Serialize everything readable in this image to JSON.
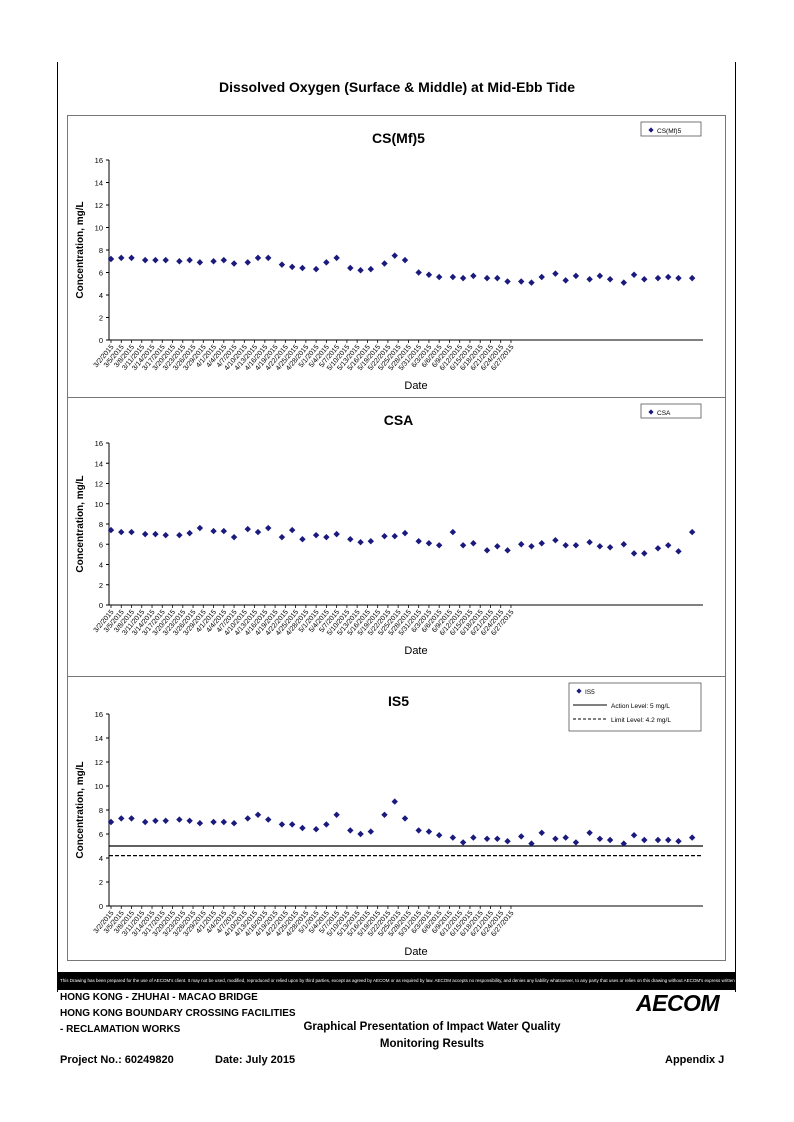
{
  "page_title": "Dissolved Oxygen (Surface & Middle) at Mid-Ebb Tide",
  "dates": [
    "3/2/2015",
    "3/5/2015",
    "3/8/2015",
    "3/11/2015",
    "3/14/2015",
    "3/17/2015",
    "3/20/2015",
    "3/23/2015",
    "3/26/2015",
    "3/29/2015",
    "4/1/2015",
    "4/4/2015",
    "4/7/2015",
    "4/10/2015",
    "4/13/2015",
    "4/16/2015",
    "4/19/2015",
    "4/22/2015",
    "4/25/2015",
    "4/28/2015",
    "5/1/2015",
    "5/4/2015",
    "5/7/2015",
    "5/10/2015",
    "5/13/2015",
    "5/16/2015",
    "5/19/2015",
    "5/22/2015",
    "5/25/2015",
    "5/28/2015",
    "5/31/2015",
    "6/3/2015",
    "6/6/2015",
    "6/9/2015",
    "6/12/2015",
    "6/15/2015",
    "6/18/2015",
    "6/21/2015",
    "6/24/2015",
    "6/27/2015"
  ],
  "chart_data": [
    {
      "type": "scatter",
      "title": "CS(Mf)5",
      "xlabel": "Date",
      "ylabel": "Concentration, mg/L",
      "ylim": [
        0,
        16
      ],
      "yticks": [
        "0",
        "2",
        "4",
        "6",
        "8",
        "10",
        "12",
        "14",
        "16"
      ],
      "x_days": [
        0,
        1,
        2,
        4,
        5,
        6,
        8,
        9,
        10,
        11,
        12,
        13,
        14,
        15,
        16,
        17,
        18,
        20,
        21,
        22,
        23,
        24,
        26,
        27,
        28,
        29,
        30,
        32,
        33,
        34,
        35,
        36,
        37,
        38,
        39,
        40,
        41,
        43,
        44,
        45,
        46,
        47,
        48,
        50,
        51,
        52,
        53,
        54,
        55,
        57,
        58,
        59,
        60,
        61,
        62,
        64,
        65,
        66,
        67,
        68,
        69,
        71,
        72,
        73,
        74,
        75,
        76,
        78,
        79,
        80,
        81,
        82,
        83,
        85,
        86,
        87,
        88,
        89,
        90,
        92,
        93,
        94,
        95,
        96,
        97,
        99,
        100,
        101,
        102,
        103,
        104,
        106,
        107,
        108,
        109,
        110,
        111,
        113,
        114,
        115,
        116,
        117,
        118
      ],
      "series": [
        {
          "name": "CS(Mf)5",
          "color": "#1a1a7e",
          "points": [
            [
              0,
              7.2
            ],
            [
              3,
              7.3
            ],
            [
              6,
              7.3
            ],
            [
              10,
              7.1
            ],
            [
              13,
              7.1
            ],
            [
              16,
              7.1
            ],
            [
              20,
              7.0
            ],
            [
              23,
              7.1
            ],
            [
              26,
              6.9
            ],
            [
              30,
              7.0
            ],
            [
              33,
              7.1
            ],
            [
              36,
              6.8
            ],
            [
              40,
              6.9
            ],
            [
              43,
              7.3
            ],
            [
              46,
              7.3
            ],
            [
              50,
              6.7
            ],
            [
              53,
              6.5
            ],
            [
              56,
              6.4
            ],
            [
              60,
              6.3
            ],
            [
              63,
              6.9
            ],
            [
              66,
              7.3
            ],
            [
              70,
              6.4
            ],
            [
              73,
              6.2
            ],
            [
              76,
              6.3
            ],
            [
              80,
              6.8
            ],
            [
              83,
              7.5
            ],
            [
              86,
              7.1
            ],
            [
              90,
              6.0
            ],
            [
              93,
              5.8
            ],
            [
              96,
              5.6
            ],
            [
              100,
              5.6
            ],
            [
              103,
              5.5
            ],
            [
              106,
              5.7
            ],
            [
              110,
              5.5
            ],
            [
              113,
              5.5
            ],
            [
              116,
              5.2
            ],
            [
              120,
              5.2
            ],
            [
              123,
              5.1
            ],
            [
              126,
              5.6
            ],
            [
              130,
              5.9
            ],
            [
              133,
              5.3
            ],
            [
              136,
              5.7
            ],
            [
              140,
              5.4
            ],
            [
              143,
              5.7
            ],
            [
              146,
              5.4
            ],
            [
              150,
              5.1
            ],
            [
              153,
              5.8
            ],
            [
              156,
              5.4
            ],
            [
              160,
              5.5
            ],
            [
              163,
              5.6
            ],
            [
              166,
              5.5
            ],
            [
              170,
              5.5
            ]
          ]
        }
      ]
    },
    {
      "type": "scatter",
      "title": "CSA",
      "xlabel": "Date",
      "ylabel": "Concentration, mg/L",
      "ylim": [
        0,
        16
      ],
      "yticks": [
        "0",
        "2",
        "4",
        "6",
        "8",
        "10",
        "12",
        "14",
        "16"
      ],
      "series": [
        {
          "name": "CSA",
          "color": "#1a1a7e",
          "points": [
            [
              0,
              7.4
            ],
            [
              3,
              7.2
            ],
            [
              6,
              7.2
            ],
            [
              10,
              7.0
            ],
            [
              13,
              7.0
            ],
            [
              16,
              6.9
            ],
            [
              20,
              6.9
            ],
            [
              23,
              7.1
            ],
            [
              26,
              7.6
            ],
            [
              30,
              7.3
            ],
            [
              33,
              7.3
            ],
            [
              36,
              6.7
            ],
            [
              40,
              7.5
            ],
            [
              43,
              7.2
            ],
            [
              46,
              7.6
            ],
            [
              50,
              6.7
            ],
            [
              53,
              7.4
            ],
            [
              56,
              6.5
            ],
            [
              60,
              6.9
            ],
            [
              63,
              6.7
            ],
            [
              66,
              7.0
            ],
            [
              70,
              6.5
            ],
            [
              73,
              6.2
            ],
            [
              76,
              6.3
            ],
            [
              80,
              6.8
            ],
            [
              83,
              6.8
            ],
            [
              86,
              7.1
            ],
            [
              90,
              6.3
            ],
            [
              93,
              6.1
            ],
            [
              96,
              5.9
            ],
            [
              100,
              7.2
            ],
            [
              103,
              5.9
            ],
            [
              106,
              6.1
            ],
            [
              110,
              5.4
            ],
            [
              113,
              5.8
            ],
            [
              116,
              5.4
            ],
            [
              120,
              6.0
            ],
            [
              123,
              5.8
            ],
            [
              126,
              6.1
            ],
            [
              130,
              6.4
            ],
            [
              133,
              5.9
            ],
            [
              136,
              5.9
            ],
            [
              140,
              6.2
            ],
            [
              143,
              5.8
            ],
            [
              146,
              5.7
            ],
            [
              150,
              6.0
            ],
            [
              153,
              5.1
            ],
            [
              156,
              5.1
            ],
            [
              160,
              5.6
            ],
            [
              163,
              5.9
            ],
            [
              166,
              5.3
            ],
            [
              170,
              7.2
            ]
          ]
        }
      ]
    },
    {
      "type": "scatter",
      "title": "IS5",
      "xlabel": "Date",
      "ylabel": "Concentration, mg/L",
      "ylim": [
        0,
        16
      ],
      "yticks": [
        "0",
        "2",
        "4",
        "6",
        "8",
        "10",
        "12",
        "14",
        "16"
      ],
      "series": [
        {
          "name": "IS5",
          "color": "#1a1a7e",
          "points": [
            [
              0,
              7.0
            ],
            [
              3,
              7.3
            ],
            [
              6,
              7.3
            ],
            [
              10,
              7.0
            ],
            [
              13,
              7.1
            ],
            [
              16,
              7.1
            ],
            [
              20,
              7.2
            ],
            [
              23,
              7.1
            ],
            [
              26,
              6.9
            ],
            [
              30,
              7.0
            ],
            [
              33,
              7.0
            ],
            [
              36,
              6.9
            ],
            [
              40,
              7.3
            ],
            [
              43,
              7.6
            ],
            [
              46,
              7.2
            ],
            [
              50,
              6.8
            ],
            [
              53,
              6.8
            ],
            [
              56,
              6.5
            ],
            [
              60,
              6.4
            ],
            [
              63,
              6.8
            ],
            [
              66,
              7.6
            ],
            [
              70,
              6.3
            ],
            [
              73,
              6.0
            ],
            [
              76,
              6.2
            ],
            [
              80,
              7.6
            ],
            [
              83,
              8.7
            ],
            [
              86,
              7.3
            ],
            [
              90,
              6.3
            ],
            [
              93,
              6.2
            ],
            [
              96,
              5.9
            ],
            [
              100,
              5.7
            ],
            [
              103,
              5.3
            ],
            [
              106,
              5.7
            ],
            [
              110,
              5.6
            ],
            [
              113,
              5.6
            ],
            [
              116,
              5.4
            ],
            [
              120,
              5.8
            ],
            [
              123,
              5.2
            ],
            [
              126,
              6.1
            ],
            [
              130,
              5.6
            ],
            [
              133,
              5.7
            ],
            [
              136,
              5.3
            ],
            [
              140,
              6.1
            ],
            [
              143,
              5.6
            ],
            [
              146,
              5.5
            ],
            [
              150,
              5.2
            ],
            [
              153,
              5.9
            ],
            [
              156,
              5.5
            ],
            [
              160,
              5.5
            ],
            [
              163,
              5.5
            ],
            [
              166,
              5.4
            ],
            [
              170,
              5.7
            ]
          ]
        }
      ],
      "lines": [
        {
          "name": "Action Level: 5 mg/L",
          "value": 5,
          "style": "solid"
        },
        {
          "name": "Limit Level: 4.2 mg/L",
          "value": 4.2,
          "style": "dashed"
        }
      ]
    }
  ],
  "disclaimer": "This Drawing has been prepared for the use of AECOM's client. It may not be used, modified, reproduced or relied upon by third parties, except as agreed by AECOM or as required by law. AECOM accepts no responsibility, and denies any liability whatsoever, to any party that uses or relies on this drawing without AECOM's express written consent.",
  "title_block": {
    "line1": "HONG KONG - ZHUHAI - MACAO BRIDGE",
    "line2": "HONG KONG BOUNDARY CROSSING FACILITIES",
    "line3": "- RECLAMATION WORKS",
    "heading1": "Graphical Presentation of Impact Water Quality",
    "heading2": "Monitoring Results",
    "project": "Project No.: 60249820",
    "date": "Date: July 2015",
    "appendix": "Appendix J",
    "logo": "AECOM"
  }
}
